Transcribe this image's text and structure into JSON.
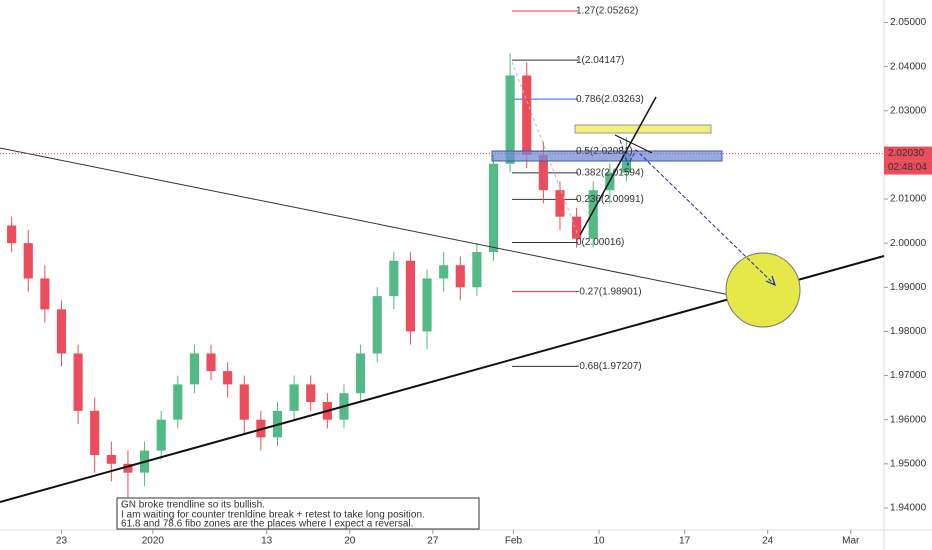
{
  "chart_data": {
    "type": "candlestick",
    "x": [
      -3,
      -2,
      -1,
      0,
      1,
      2,
      3,
      4,
      5,
      6,
      7,
      8,
      9,
      10,
      11,
      12,
      13,
      14,
      15,
      16,
      17,
      18,
      19,
      20,
      21,
      22,
      23,
      24,
      25,
      26,
      27,
      28,
      29,
      30,
      31,
      32,
      33,
      34
    ],
    "open": [
      2.004,
      2.0,
      1.992,
      1.985,
      1.975,
      1.962,
      1.952,
      1.95,
      1.948,
      1.953,
      1.96,
      1.968,
      1.975,
      1.971,
      1.968,
      1.96,
      1.956,
      1.962,
      1.968,
      1.964,
      1.96,
      1.966,
      1.975,
      1.988,
      1.996,
      1.98,
      1.992,
      1.995,
      1.99,
      1.998,
      2.018,
      2.038,
      2.02,
      2.012,
      2.006,
      2.001,
      2.012,
      2.016
    ],
    "high": [
      2.006,
      2.003,
      1.995,
      1.987,
      1.977,
      1.965,
      1.955,
      1.953,
      1.955,
      1.962,
      1.97,
      1.977,
      1.977,
      1.973,
      1.97,
      1.962,
      1.964,
      1.97,
      1.97,
      1.966,
      1.968,
      1.977,
      1.99,
      1.998,
      1.998,
      1.994,
      1.998,
      1.997,
      2.0,
      2.02,
      2.043,
      2.041,
      2.023,
      2.014,
      2.008,
      2.014,
      2.018,
      2.024
    ],
    "low": [
      1.998,
      1.989,
      1.982,
      1.972,
      1.959,
      1.948,
      1.946,
      1.942,
      1.945,
      1.951,
      1.958,
      1.966,
      1.969,
      1.965,
      1.957,
      1.953,
      1.954,
      1.96,
      1.962,
      1.958,
      1.958,
      1.964,
      1.973,
      1.985,
      1.977,
      1.976,
      1.989,
      1.987,
      1.988,
      1.996,
      2.016,
      2.017,
      2.009,
      2.003,
      1.999,
      1.999,
      2.009,
      2.014
    ],
    "close": [
      2.0,
      1.992,
      1.985,
      1.975,
      1.962,
      1.952,
      1.95,
      1.948,
      1.953,
      1.96,
      1.968,
      1.975,
      1.971,
      1.968,
      1.96,
      1.956,
      1.962,
      1.968,
      1.964,
      1.96,
      1.966,
      1.975,
      1.988,
      1.996,
      1.98,
      1.992,
      1.995,
      1.99,
      1.998,
      2.018,
      2.038,
      2.02,
      2.012,
      2.006,
      2.001,
      2.012,
      2.016,
      2.0203
    ],
    "up_color": "#53b987",
    "down_color": "#eb4d5c",
    "xlim": [
      -3.7,
      49.5
    ],
    "xticks": [
      {
        "value": 0,
        "label": "23"
      },
      {
        "value": 5.5,
        "label": "2020"
      },
      {
        "value": 12.35,
        "label": "13"
      },
      {
        "value": 17.35,
        "label": "20"
      },
      {
        "value": 22.35,
        "label": "27"
      },
      {
        "value": 27.2,
        "label": "Feb"
      },
      {
        "value": 32.35,
        "label": "10"
      },
      {
        "value": 37.5,
        "label": "17"
      },
      {
        "value": 42.5,
        "label": "24"
      },
      {
        "value": 47.5,
        "label": "Mar"
      }
    ],
    "ylim": [
      1.935,
      2.0551
    ],
    "yticks": [
      {
        "value": 2.05,
        "label": "2.05000"
      },
      {
        "value": 2.04,
        "label": "2.04000"
      },
      {
        "value": 2.03,
        "label": "2.03000"
      },
      {
        "value": 2.02,
        "label": "2.02000"
      },
      {
        "value": 2.01,
        "label": "2.01000"
      },
      {
        "value": 2.0,
        "label": "2.00000"
      },
      {
        "value": 1.99,
        "label": "1.99000"
      },
      {
        "value": 1.98,
        "label": "1.98000"
      },
      {
        "value": 1.97,
        "label": "1.97000"
      },
      {
        "value": 1.96,
        "label": "1.96000"
      },
      {
        "value": 1.95,
        "label": "1.95000"
      },
      {
        "value": 1.94,
        "label": "1.94000"
      }
    ],
    "last_price": {
      "value": 2.0203,
      "label": "2.02030"
    },
    "countdown": "02:48:04",
    "fib": {
      "levels": [
        2.05262,
        2.04147,
        2.03263,
        2.02081,
        2.01594,
        2.00991,
        2.00016,
        1.98901,
        1.97207
      ],
      "labels": [
        "1.27(2.05262)",
        "1(2.04147)",
        "0.786(2.03263)",
        "0.5(2.02081)",
        "0.382(2.01594)",
        "0.236(2.00991)",
        "0(2.00016)",
        "-0.27(1.98901)",
        "-0.68(1.97207)"
      ],
      "colors": [
        "#f23645",
        "#333333",
        "#2962ff",
        "#333333",
        "#333333",
        "#333333",
        "#333333",
        "#f23645",
        "#333333"
      ]
    },
    "note": [
      "GN broke trendline so its bullish.",
      "I am waiting for counter trenldine break + retest to take long position.",
      "61.8 and 78.6 fibo zones are the places where I expect a reversal."
    ]
  }
}
